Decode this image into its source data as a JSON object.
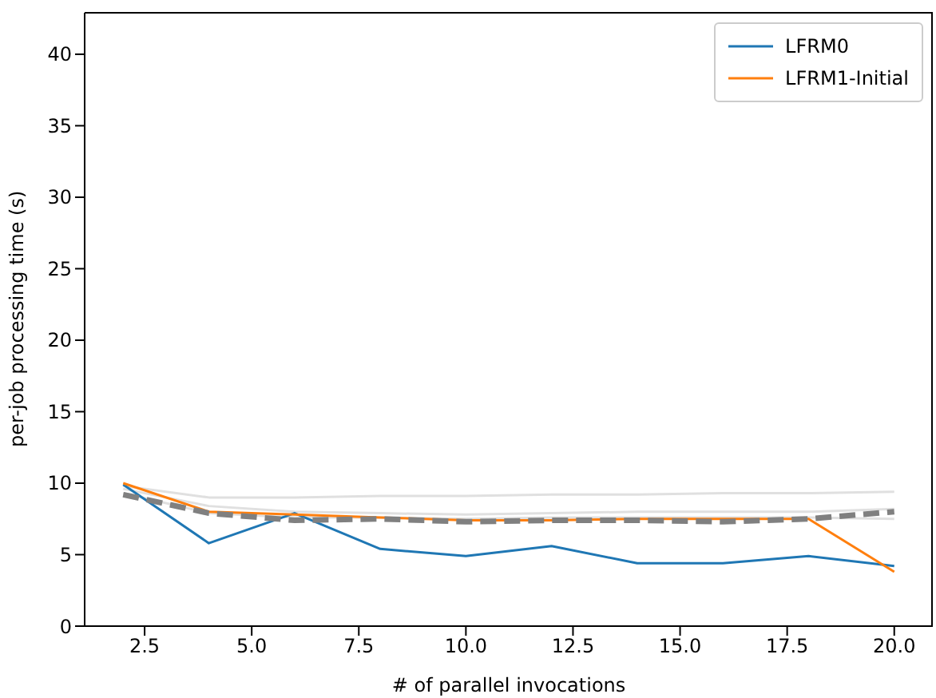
{
  "chart_data": {
    "type": "line",
    "xlabel": "# of parallel invocations",
    "ylabel": "per-job processing time (s)",
    "x": [
      2,
      4,
      6,
      8,
      10,
      12,
      14,
      16,
      18,
      20
    ],
    "xlim": [
      1.1,
      20.9
    ],
    "xticks": [
      {
        "value": 2.5,
        "label": "2.5"
      },
      {
        "value": 5,
        "label": "5.0"
      },
      {
        "value": 7.5,
        "label": "7.5"
      },
      {
        "value": 10,
        "label": "10.0"
      },
      {
        "value": 12.5,
        "label": "12.5"
      },
      {
        "value": 15,
        "label": "15.0"
      },
      {
        "value": 17.5,
        "label": "17.5"
      },
      {
        "value": 20,
        "label": "20.0"
      }
    ],
    "ylim": [
      0,
      42.9
    ],
    "yticks": [
      0,
      5,
      10,
      15,
      20,
      25,
      30,
      35,
      40
    ],
    "grid": false,
    "legend": "top right",
    "marker": "none",
    "series": [
      {
        "color": "#e0e0e0",
        "line_style": "solid",
        "values": [
          9.8,
          9.0,
          9.0,
          9.1,
          9.1,
          9.2,
          9.2,
          9.3,
          9.3,
          9.4
        ]
      },
      {
        "color": "#e0e0e0",
        "line_style": "solid",
        "values": [
          9.6,
          8.4,
          8.0,
          7.9,
          7.8,
          7.9,
          8.0,
          8.0,
          8.0,
          8.2
        ]
      },
      {
        "color": "#e0e0e0",
        "line_style": "solid",
        "values": [
          9.3,
          7.9,
          7.6,
          7.6,
          7.5,
          7.6,
          7.6,
          7.6,
          7.6,
          7.5
        ]
      },
      {
        "name": "LFRM0",
        "color": "#1f77b4",
        "line_style": "solid",
        "values": [
          9.9,
          5.8,
          7.9,
          5.4,
          4.9,
          5.6,
          4.4,
          4.4,
          4.9,
          4.2
        ]
      },
      {
        "name": "LFRM1-Initial",
        "color": "#ff7f0e",
        "line_style": "solid",
        "values": [
          10.0,
          8.0,
          7.8,
          7.6,
          7.4,
          7.4,
          7.5,
          7.5,
          7.5,
          3.8
        ]
      },
      {
        "color": "#808080",
        "line_style": "dashed",
        "values": [
          9.2,
          7.9,
          7.4,
          7.5,
          7.3,
          7.4,
          7.4,
          7.3,
          7.5,
          8.0
        ]
      }
    ]
  }
}
